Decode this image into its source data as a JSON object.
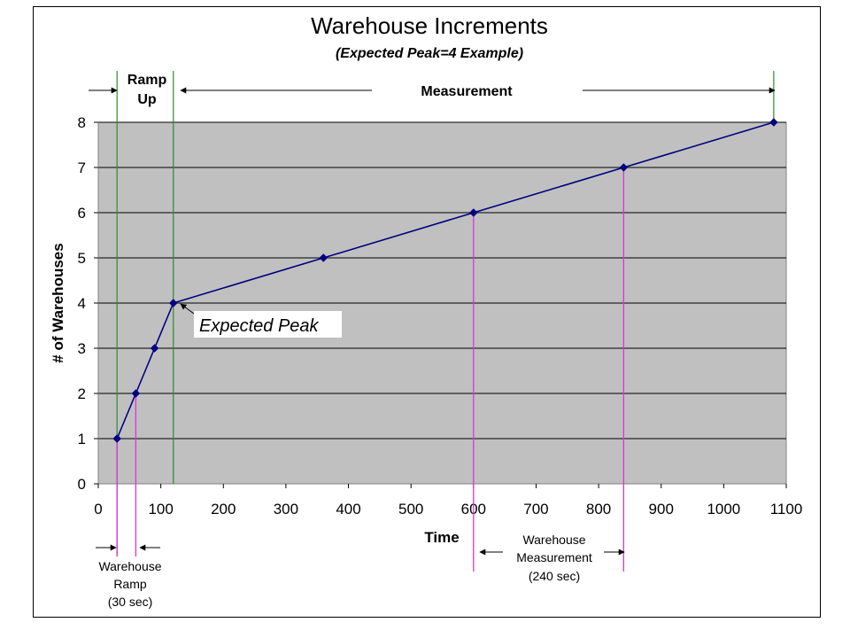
{
  "chart_data": {
    "type": "line",
    "title": "Warehouse Increments",
    "subtitle": "(Expected Peak=4 Example)",
    "xlabel": "Time",
    "ylabel": "# of Warehouses",
    "xlim": [
      0,
      1100
    ],
    "ylim": [
      0,
      8
    ],
    "x_ticks": [
      "0",
      "100",
      "200",
      "300",
      "400",
      "500",
      "600",
      "700",
      "800",
      "900",
      "1000",
      "1100"
    ],
    "y_ticks": [
      "0",
      "1",
      "2",
      "3",
      "4",
      "5",
      "6",
      "7",
      "8"
    ],
    "grid": "horizontal",
    "plot_background": "#c0c0c0",
    "series": [
      {
        "color": "#000080",
        "x": [
          30,
          60,
          90,
          120,
          360,
          600,
          840,
          1080
        ],
        "y": [
          1,
          2,
          3,
          4,
          5,
          6,
          7,
          8
        ]
      }
    ],
    "phases": {
      "ramp_up_label": [
        "Ramp",
        "Up"
      ],
      "measurement_label": "Measurement",
      "ramp_up_lines_x": [
        30,
        120
      ],
      "measurement_end_x": 1080,
      "color": "#2e8b2e"
    },
    "markers": {
      "magenta_lines_x": [
        30,
        60,
        600,
        840
      ],
      "color": "#dd33dd"
    },
    "annotations": {
      "expected_peak": "Expected Peak",
      "warehouse_ramp": [
        "Warehouse",
        "Ramp",
        "(30 sec)"
      ],
      "warehouse_measurement": [
        "Warehouse",
        "Measurement",
        "(240 sec)"
      ]
    }
  }
}
